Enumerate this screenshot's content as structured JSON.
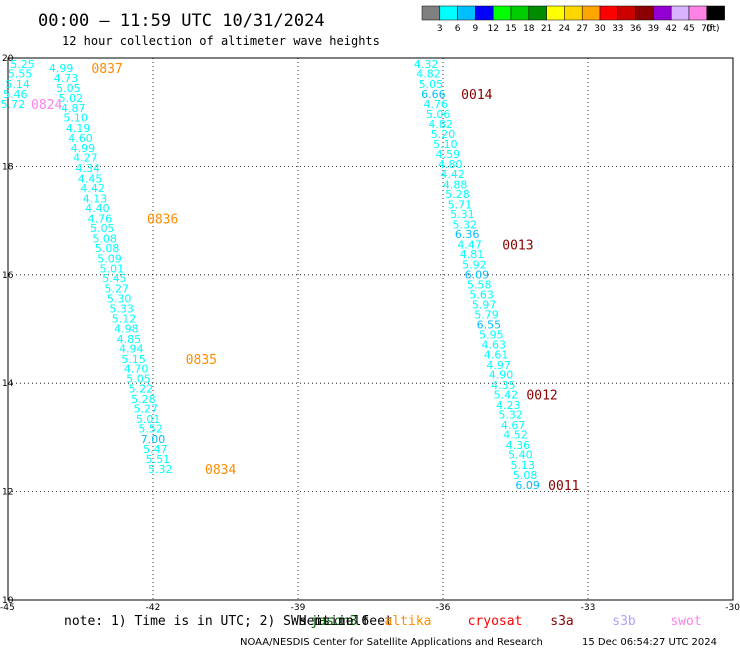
{
  "title": "00:00 – 11:59 UTC 10/31/2024",
  "subtitle": "12 hour collection of altimeter wave heights",
  "note": "note: 1) Time is in UTC; 2) SWH is in feet",
  "credit": "NOAA/NESDIS Center for Satellite Applications and Research",
  "generated": "15 Dec 06:54:27 UTC 2024",
  "legend": {
    "unit": "(ft)",
    "labels": [
      "3",
      "6",
      "9",
      "12",
      "15",
      "18",
      "21",
      "24",
      "27",
      "30",
      "33",
      "36",
      "39",
      "42",
      "45",
      "70"
    ],
    "colors": [
      "#808080",
      "#00ffff",
      "#00bfff",
      "#0000ff",
      "#00ff00",
      "#00cd00",
      "#008b00",
      "#ffff00",
      "#ffd700",
      "#ffa500",
      "#ff0000",
      "#cd0000",
      "#8b0000",
      "#9400d3",
      "#d8b4fe",
      "#ff82e6",
      "#000000"
    ]
  },
  "satellites": [
    {
      "name": "jason3",
      "color": "#006400"
    },
    {
      "name": "sentinel6",
      "color": "#000000"
    },
    {
      "name": "altika",
      "color": "#ff8c00"
    },
    {
      "name": "cryosat",
      "color": "#ff0000"
    },
    {
      "name": "s3a",
      "color": "#8b0000"
    },
    {
      "name": "s3b",
      "color": "#b0a0ff"
    },
    {
      "name": "swot",
      "color": "#ff82e6"
    }
  ],
  "chart_data": {
    "type": "scatter",
    "xlim": [
      -45,
      -30
    ],
    "ylim": [
      10,
      20
    ],
    "xticks": [
      "-45",
      "-42",
      "-39",
      "-36",
      "-33",
      "-30"
    ],
    "yticks": [
      "10",
      "12",
      "14",
      "16",
      "18",
      "20"
    ],
    "grid": true,
    "value_color": "#00ffff",
    "value_color_dark": "#00bfff",
    "tracks": [
      {
        "satellite": "altika",
        "color": "#ff8c00",
        "points": [
          {
            "x": -43.9,
            "y": 19.82,
            "v": "4.99"
          },
          {
            "x": -43.8,
            "y": 19.63,
            "v": "4.73"
          },
          {
            "x": -43.75,
            "y": 19.45,
            "v": "5.05"
          },
          {
            "x": -43.7,
            "y": 19.26,
            "v": "5.02"
          },
          {
            "x": -43.65,
            "y": 19.08,
            "v": "4.87"
          },
          {
            "x": -43.6,
            "y": 18.9,
            "v": "5.10"
          },
          {
            "x": -43.55,
            "y": 18.71,
            "v": "4.19"
          },
          {
            "x": -43.5,
            "y": 18.52,
            "v": "4.60"
          },
          {
            "x": -43.45,
            "y": 18.34,
            "v": "4.99"
          },
          {
            "x": -43.4,
            "y": 18.16,
            "v": "4.27"
          },
          {
            "x": -43.35,
            "y": 17.97,
            "v": "4.34"
          },
          {
            "x": -43.3,
            "y": 17.78,
            "v": "4.45"
          },
          {
            "x": -43.25,
            "y": 17.6,
            "v": "4.42"
          },
          {
            "x": -43.2,
            "y": 17.41,
            "v": "4.13"
          },
          {
            "x": -43.15,
            "y": 17.23,
            "v": "4.40"
          },
          {
            "x": -43.1,
            "y": 17.04,
            "v": "4.76"
          },
          {
            "x": -43.05,
            "y": 16.86,
            "v": "5.05"
          },
          {
            "x": -43.0,
            "y": 16.67,
            "v": "5.08"
          },
          {
            "x": -42.95,
            "y": 16.49,
            "v": "5.08"
          },
          {
            "x": -42.9,
            "y": 16.3,
            "v": "5.09"
          },
          {
            "x": -42.85,
            "y": 16.12,
            "v": "5.01"
          },
          {
            "x": -42.8,
            "y": 15.94,
            "v": "5.45"
          },
          {
            "x": -42.75,
            "y": 15.75,
            "v": "5.27"
          },
          {
            "x": -42.7,
            "y": 15.56,
            "v": "5.30"
          },
          {
            "x": -42.65,
            "y": 15.38,
            "v": "5.33"
          },
          {
            "x": -42.6,
            "y": 15.19,
            "v": "5.12"
          },
          {
            "x": -42.55,
            "y": 15.01,
            "v": "4.98"
          },
          {
            "x": -42.5,
            "y": 14.82,
            "v": "4.85"
          },
          {
            "x": -42.45,
            "y": 14.64,
            "v": "4.94"
          },
          {
            "x": -42.4,
            "y": 14.45,
            "v": "5.15"
          },
          {
            "x": -42.35,
            "y": 14.27,
            "v": "4.70"
          },
          {
            "x": -42.3,
            "y": 14.09,
            "v": "5.05"
          },
          {
            "x": -42.25,
            "y": 13.9,
            "v": "5.22"
          },
          {
            "x": -42.2,
            "y": 13.71,
            "v": "5.28"
          },
          {
            "x": -42.15,
            "y": 13.53,
            "v": "5.27"
          },
          {
            "x": -42.1,
            "y": 13.34,
            "v": "5.01"
          },
          {
            "x": -42.05,
            "y": 13.16,
            "v": "5.52"
          },
          {
            "x": -42.0,
            "y": 12.97,
            "v": "7.00"
          },
          {
            "x": -41.95,
            "y": 12.79,
            "v": "5.47"
          },
          {
            "x": -41.9,
            "y": 12.6,
            "v": "5.51"
          },
          {
            "x": -41.85,
            "y": 12.42,
            "v": "5.32"
          }
        ],
        "pass_labels": [
          {
            "text": "0837",
            "x": -42.95,
            "y": 19.82
          },
          {
            "text": "0836",
            "x": -41.8,
            "y": 17.04
          },
          {
            "text": "0835",
            "x": -41.0,
            "y": 14.45
          },
          {
            "text": "0834",
            "x": -40.6,
            "y": 12.42
          }
        ]
      },
      {
        "satellite": "swot",
        "color": "#ff82e6",
        "points": [
          {
            "x": -44.7,
            "y": 19.89,
            "v": "5.25"
          },
          {
            "x": -44.75,
            "y": 19.71,
            "v": "5.55"
          },
          {
            "x": -44.8,
            "y": 19.52,
            "v": "5.14"
          },
          {
            "x": -44.85,
            "y": 19.34,
            "v": "5.46"
          },
          {
            "x": -44.9,
            "y": 19.15,
            "v": "5.72"
          }
        ],
        "pass_labels": [
          {
            "text": "0824",
            "x": -44.2,
            "y": 19.15
          }
        ]
      },
      {
        "satellite": "s3a",
        "color": "#8b0000",
        "points": [
          {
            "x": -36.35,
            "y": 19.89,
            "v": "4.32"
          },
          {
            "x": -36.3,
            "y": 19.71,
            "v": "4.82"
          },
          {
            "x": -36.25,
            "y": 19.52,
            "v": "5.05"
          },
          {
            "x": -36.2,
            "y": 19.34,
            "v": "6.66"
          },
          {
            "x": -36.15,
            "y": 19.15,
            "v": "4.76"
          },
          {
            "x": -36.1,
            "y": 18.97,
            "v": "5.06"
          },
          {
            "x": -36.05,
            "y": 18.78,
            "v": "4.82"
          },
          {
            "x": -36.0,
            "y": 18.6,
            "v": "5.20"
          },
          {
            "x": -35.95,
            "y": 18.41,
            "v": "5.10"
          },
          {
            "x": -35.9,
            "y": 18.23,
            "v": "4.59"
          },
          {
            "x": -35.85,
            "y": 18.04,
            "v": "4.80"
          },
          {
            "x": -35.8,
            "y": 17.86,
            "v": "4.42"
          },
          {
            "x": -35.75,
            "y": 17.67,
            "v": "4.88"
          },
          {
            "x": -35.7,
            "y": 17.49,
            "v": "5.28"
          },
          {
            "x": -35.65,
            "y": 17.3,
            "v": "5.71"
          },
          {
            "x": -35.6,
            "y": 17.12,
            "v": "5.31"
          },
          {
            "x": -35.55,
            "y": 16.93,
            "v": "5.32"
          },
          {
            "x": -35.5,
            "y": 16.75,
            "v": "6.36"
          },
          {
            "x": -35.45,
            "y": 16.56,
            "v": "4.47"
          },
          {
            "x": -35.4,
            "y": 16.38,
            "v": "4.81"
          },
          {
            "x": -35.35,
            "y": 16.19,
            "v": "5.92"
          },
          {
            "x": -35.3,
            "y": 16.01,
            "v": "6.09"
          },
          {
            "x": -35.25,
            "y": 15.82,
            "v": "5.58"
          },
          {
            "x": -35.2,
            "y": 15.64,
            "v": "5.63"
          },
          {
            "x": -35.15,
            "y": 15.45,
            "v": "5.97"
          },
          {
            "x": -35.1,
            "y": 15.27,
            "v": "5.79"
          },
          {
            "x": -35.05,
            "y": 15.08,
            "v": "6.55"
          },
          {
            "x": -35.0,
            "y": 14.9,
            "v": "5.95"
          },
          {
            "x": -34.95,
            "y": 14.71,
            "v": "4.63"
          },
          {
            "x": -34.9,
            "y": 14.53,
            "v": "4.61"
          },
          {
            "x": -34.85,
            "y": 14.34,
            "v": "4.97"
          },
          {
            "x": -34.8,
            "y": 14.16,
            "v": "4.90"
          },
          {
            "x": -34.75,
            "y": 13.97,
            "v": "4.35"
          },
          {
            "x": -34.7,
            "y": 13.79,
            "v": "5.42"
          },
          {
            "x": -34.65,
            "y": 13.6,
            "v": "4.23"
          },
          {
            "x": -34.6,
            "y": 13.42,
            "v": "5.32"
          },
          {
            "x": -34.55,
            "y": 13.23,
            "v": "4.67"
          },
          {
            "x": -34.5,
            "y": 13.05,
            "v": "4.52"
          },
          {
            "x": -34.45,
            "y": 12.86,
            "v": "4.36"
          },
          {
            "x": -34.4,
            "y": 12.68,
            "v": "5.40"
          },
          {
            "x": -34.35,
            "y": 12.49,
            "v": "5.13"
          },
          {
            "x": -34.3,
            "y": 12.31,
            "v": "5.08"
          },
          {
            "x": -34.25,
            "y": 12.12,
            "v": "6.09"
          }
        ],
        "pass_labels": [
          {
            "text": "0014",
            "x": -35.3,
            "y": 19.34
          },
          {
            "text": "0013",
            "x": -34.45,
            "y": 16.56
          },
          {
            "text": "0012",
            "x": -33.95,
            "y": 13.79
          },
          {
            "text": "0011",
            "x": -33.5,
            "y": 12.12
          }
        ]
      }
    ]
  }
}
